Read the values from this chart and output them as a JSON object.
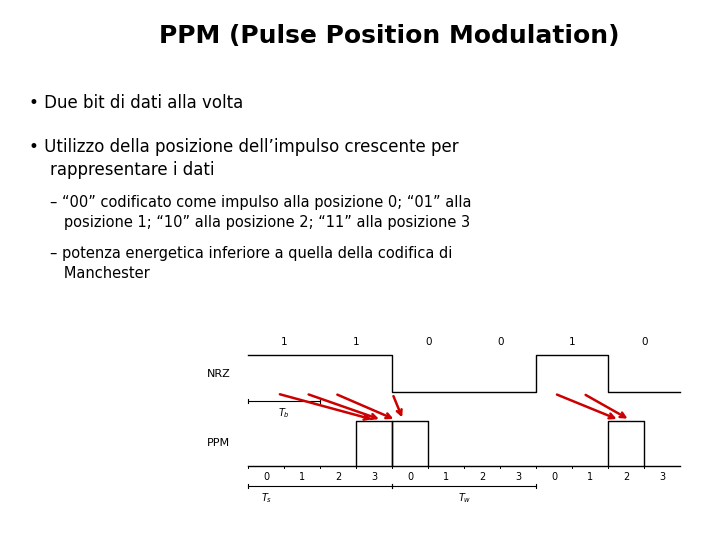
{
  "title": "PPM (Pulse Position Modulation)",
  "title_fontsize": 18,
  "title_fontweight": "bold",
  "bg_color": "#ffffff",
  "text_color": "#000000",
  "bullet1": "Due bit di dati alla volta",
  "bullet2_line1": "Utilizzo della posizione dell’impulso crescente per",
  "bullet2_line2": "    rappresentare i dati",
  "sub1_line1": "– “00” codificato come impulso alla posizione 0; “01” alla",
  "sub1_line2": "   posizione 1; “10” alla posizione 2; “11” alla posizione 3",
  "sub2_line1": "– potenza energetica inferiore a quella della codifica di",
  "sub2_line2": "   Manchester",
  "bits": [
    1,
    1,
    0,
    0,
    1,
    0
  ],
  "font_size_bullets": 12,
  "font_size_sub": 10.5
}
